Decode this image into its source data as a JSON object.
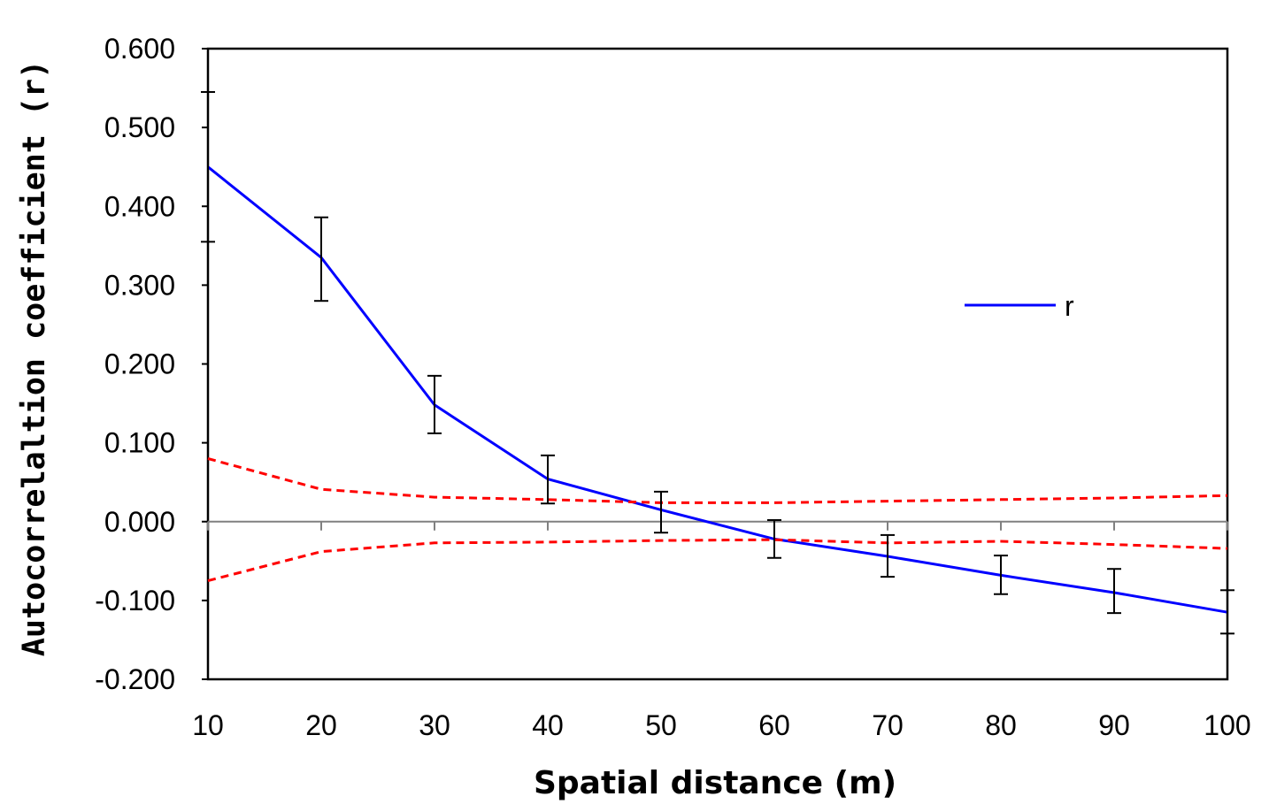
{
  "chart_data": {
    "type": "line",
    "xlabel": "Spatial distance (m)",
    "ylabel": "Autocorrelaltion coefficient (r)",
    "xlim": [
      10,
      100
    ],
    "ylim": [
      -0.2,
      0.6
    ],
    "x_ticks": [
      "10",
      "20",
      "30",
      "40",
      "50",
      "60",
      "70",
      "80",
      "90",
      "100"
    ],
    "y_ticks": [
      "0.600",
      "0.500",
      "0.400",
      "0.300",
      "0.200",
      "0.100",
      "0.000",
      "-0.100",
      "-0.200"
    ],
    "x": [
      10,
      20,
      30,
      40,
      50,
      60,
      70,
      80,
      90,
      100
    ],
    "series": [
      {
        "name": "r",
        "color": "#0000ff",
        "style": "solid",
        "values": [
          0.45,
          0.335,
          0.148,
          0.054,
          0.015,
          -0.022,
          -0.044,
          -0.068,
          -0.09,
          -0.115
        ],
        "error_low": [
          0.355,
          0.28,
          0.112,
          0.023,
          -0.014,
          -0.046,
          -0.07,
          -0.092,
          -0.116,
          -0.142
        ],
        "error_high": [
          0.545,
          0.386,
          0.185,
          0.084,
          0.038,
          0.002,
          -0.017,
          -0.043,
          -0.06,
          -0.087
        ]
      },
      {
        "color": "#ff0000",
        "style": "dashed",
        "values": [
          0.08,
          0.041,
          0.031,
          0.028,
          0.024,
          0.024,
          0.026,
          0.028,
          0.03,
          0.033
        ]
      },
      {
        "color": "#ff0000",
        "style": "dashed",
        "values": [
          -0.075,
          -0.038,
          -0.027,
          -0.026,
          -0.024,
          -0.023,
          -0.027,
          -0.025,
          -0.029,
          -0.034
        ]
      }
    ],
    "legend_position": "right-center",
    "zero_line": true,
    "grid": false
  }
}
